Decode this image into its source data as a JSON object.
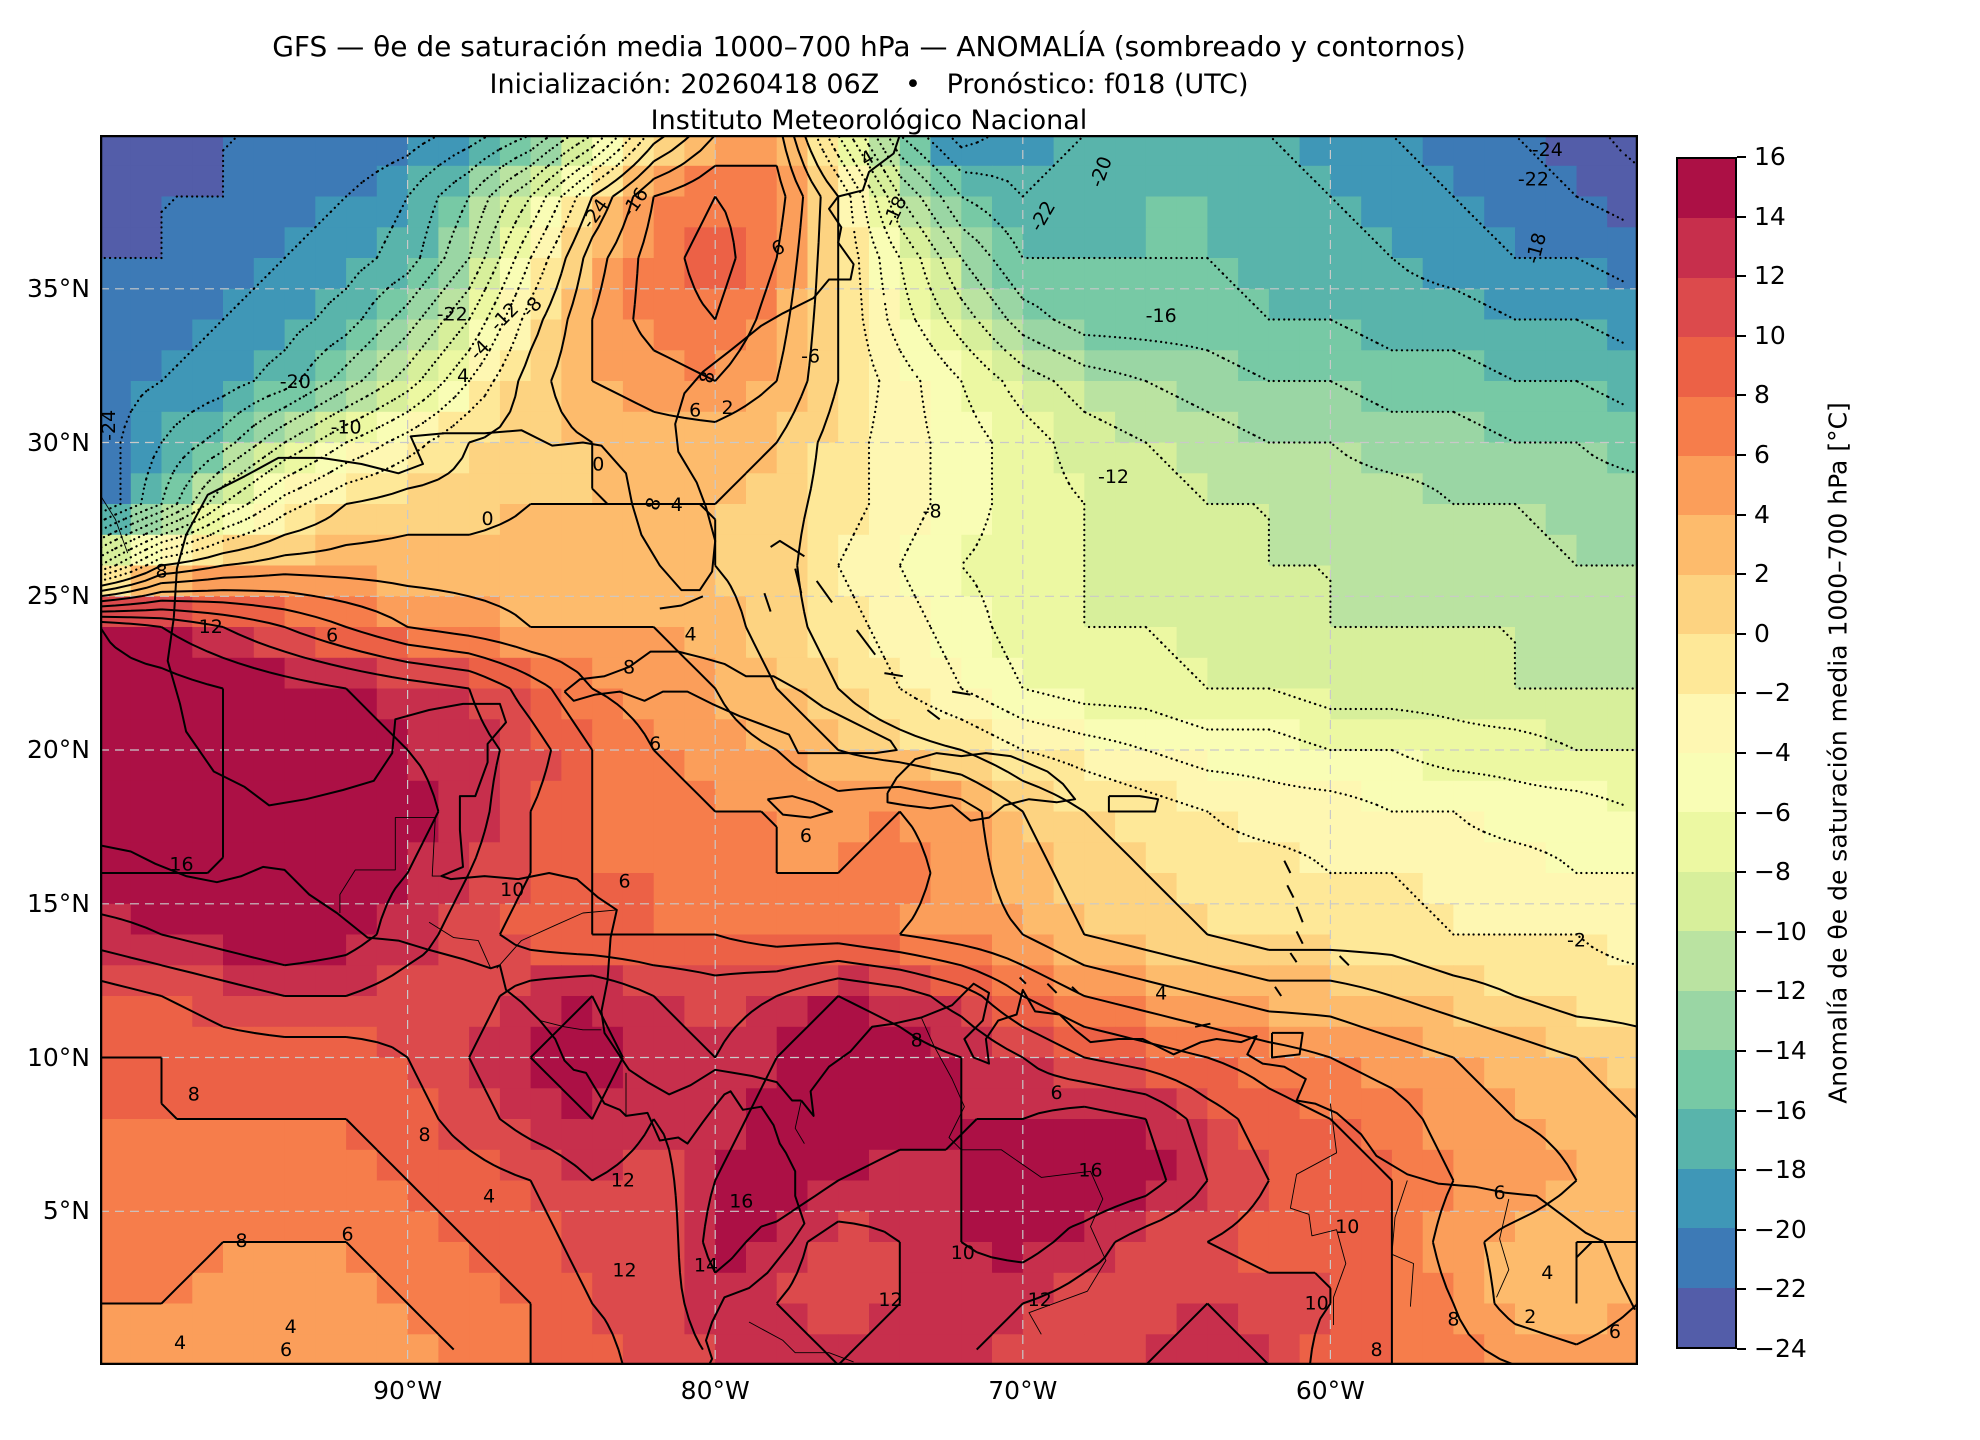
{
  "header": {
    "title": "GFS — θe de saturación media 1000–700 hPa — ANOMALÍA (sombreado y contornos)",
    "subtitle": "Inicialización: 20260418 06Z   •   Pronóstico: f018 (UTC)",
    "institution": "Instituto Meteorológico Nacional"
  },
  "chart_data": {
    "type": "heatmap",
    "subtype": "filled-contour-map-with-contour-lines",
    "model": "GFS",
    "field": "θe de saturación media 1000–700 hPa — anomalía",
    "init": "20260418 06Z",
    "forecast": "f018 (UTC)",
    "lon_range": [
      -100,
      -50
    ],
    "lat_range": [
      0,
      40
    ],
    "grid_step_deg": 2,
    "lons": [
      -100,
      -98,
      -96,
      -94,
      -92,
      -90,
      -88,
      -86,
      -84,
      -82,
      -80,
      -78,
      -76,
      -74,
      -72,
      -70,
      -68,
      -66,
      -64,
      -62,
      -60,
      -58,
      -56,
      -54,
      -52,
      -50
    ],
    "lats": [
      40,
      38,
      36,
      34,
      32,
      30,
      28,
      26,
      24,
      22,
      20,
      18,
      16,
      14,
      12,
      10,
      8,
      6,
      4,
      2,
      0
    ],
    "values": [
      [
        -23,
        -23,
        -22,
        -22,
        -22,
        -21,
        -19,
        -16,
        -10,
        -1,
        4,
        5,
        -6,
        -16,
        -21,
        -19,
        -18,
        -17,
        -17,
        -18,
        -19,
        -20,
        -21,
        -22,
        -23,
        -25
      ],
      [
        -23,
        -22,
        -22,
        -21,
        -20,
        -18,
        -14,
        -8,
        0,
        6,
        8,
        7,
        0,
        -10,
        -16,
        -18,
        -17,
        -16,
        -16,
        -17,
        -18,
        -19,
        -20,
        -21,
        -22,
        -23
      ],
      [
        -22,
        -22,
        -21,
        -20,
        -19,
        -17,
        -12,
        -4,
        3,
        7,
        9,
        6,
        0,
        -6,
        -12,
        -16,
        -16,
        -16,
        -16,
        -17,
        -17,
        -18,
        -19,
        -20,
        -20,
        -21
      ],
      [
        -21,
        -21,
        -20,
        -19,
        -17,
        -13,
        -8,
        -1,
        4,
        7,
        8,
        5,
        0,
        -5,
        -9,
        -13,
        -15,
        -15,
        -15,
        -16,
        -16,
        -17,
        -17,
        -18,
        -18,
        -19
      ],
      [
        -21,
        -20,
        -19,
        -17,
        -13,
        -9,
        -4,
        1,
        4,
        5,
        6,
        4,
        0,
        -3,
        -6,
        -9,
        -11,
        -12,
        -13,
        -14,
        -14,
        -15,
        -15,
        -16,
        -16,
        -17
      ],
      [
        -21,
        -18,
        -15,
        -10,
        -6,
        -3,
        0,
        1,
        2,
        3,
        3,
        2,
        -1,
        -3,
        -5,
        -7,
        -9,
        -10,
        -11,
        -12,
        -12,
        -13,
        -13,
        -14,
        -14,
        -15
      ],
      [
        -22,
        -16,
        -8,
        -3,
        0,
        1,
        1,
        2,
        2,
        2,
        2,
        1,
        -1,
        -3,
        -5,
        -7,
        -8,
        -9,
        -10,
        -10,
        -11,
        -11,
        -12,
        -12,
        -13,
        -13
      ],
      [
        -8,
        0,
        2,
        3,
        3,
        3,
        3,
        3,
        3,
        3,
        2,
        1,
        -2,
        -4,
        -6,
        -7,
        -8,
        -9,
        -9,
        -10,
        -10,
        -11,
        -11,
        -11,
        -12,
        -12
      ],
      [
        16,
        14,
        12,
        10,
        8,
        6,
        5,
        4,
        4,
        4,
        3,
        1,
        -1,
        -3,
        -5,
        -7,
        -8,
        -8,
        -9,
        -9,
        -10,
        -10,
        -10,
        -10,
        -11,
        -11
      ],
      [
        17,
        17,
        16,
        15,
        14,
        13,
        12,
        9,
        6,
        5,
        4,
        2,
        0,
        -2,
        -4,
        -6,
        -7,
        -7,
        -8,
        -8,
        -9,
        -9,
        -9,
        -10,
        -10,
        -10
      ],
      [
        17,
        17,
        16,
        16,
        15,
        14,
        13,
        11,
        8,
        6,
        5,
        4,
        2,
        1,
        0,
        -2,
        -3,
        -4,
        -5,
        -5,
        -6,
        -6,
        -7,
        -7,
        -8,
        -8
      ],
      [
        17,
        17,
        16,
        16,
        15,
        15,
        13,
        10,
        8,
        7,
        6,
        6,
        5,
        6,
        5,
        2,
        0,
        -1,
        -2,
        -3,
        -3,
        -4,
        -4,
        -5,
        -5,
        -6
      ],
      [
        16,
        16,
        16,
        16,
        15,
        14,
        12,
        10,
        8,
        8,
        7,
        6,
        6,
        7,
        5,
        3,
        1,
        0,
        -1,
        -1,
        -2,
        -2,
        -3,
        -3,
        -4,
        -4
      ],
      [
        13,
        14,
        15,
        16,
        15,
        13,
        11,
        9,
        8,
        8,
        8,
        7,
        7,
        6,
        5,
        4,
        2,
        1,
        0,
        -1,
        -1,
        -1,
        -2,
        -2,
        -2,
        -3
      ],
      [
        9,
        10,
        11,
        12,
        12,
        11,
        11,
        13,
        14,
        12,
        11,
        12,
        14,
        13,
        11,
        8,
        6,
        5,
        4,
        3,
        3,
        2,
        1,
        0,
        -1,
        -1
      ],
      [
        8,
        8,
        9,
        9,
        9,
        10,
        12,
        14,
        15,
        13,
        12,
        14,
        16,
        15,
        14,
        12,
        10,
        9,
        8,
        7,
        6,
        5,
        4,
        3,
        2,
        1
      ],
      [
        8,
        8,
        8,
        8,
        8,
        9,
        11,
        13,
        14,
        12,
        13,
        15,
        16,
        15,
        14,
        14,
        15,
        14,
        11,
        9,
        8,
        7,
        5,
        4,
        3,
        2
      ],
      [
        7,
        7,
        7,
        7,
        7,
        8,
        9,
        10,
        12,
        11,
        14,
        16,
        14,
        13,
        14,
        15,
        16,
        15,
        12,
        10,
        9,
        8,
        6,
        6,
        4,
        3
      ],
      [
        7,
        7,
        6,
        6,
        6,
        7,
        8,
        9,
        11,
        10,
        15,
        13,
        11,
        12,
        14,
        15,
        13,
        11,
        10,
        9,
        10,
        8,
        5,
        3,
        2,
        2
      ],
      [
        6,
        6,
        5,
        5,
        5,
        6,
        7,
        8,
        10,
        11,
        13,
        12,
        11,
        12,
        13,
        12,
        11,
        11,
        12,
        11,
        10,
        8,
        6,
        3,
        2,
        4
      ],
      [
        6,
        5,
        5,
        4,
        4,
        5,
        6,
        8,
        9,
        11,
        12,
        13,
        12,
        13,
        12,
        11,
        10,
        12,
        13,
        12,
        9,
        8,
        7,
        6,
        5,
        6
      ]
    ],
    "fill_levels": {
      "min": -24,
      "max": 16,
      "step": 2
    },
    "contour_level_step": 2,
    "contour_style": {
      "positive": "solid",
      "negative": "dotted",
      "color": "#000000"
    },
    "colors": [
      "#535da9",
      "#3d7ab6",
      "#3f97b7",
      "#59b4ab",
      "#77c9a5",
      "#9ad6a4",
      "#bae3a1",
      "#d7ef9b",
      "#ecf8a2",
      "#f9fdb5",
      "#fef7b2",
      "#fee898",
      "#fdd381",
      "#fdbb6c",
      "#fb9e5a",
      "#f67d4b",
      "#ec6146",
      "#dc4a4c",
      "#c72f4c",
      "#ac1045"
    ],
    "grid_on": true,
    "xticks": [
      {
        "lon": -90,
        "label": "90°W"
      },
      {
        "lon": -80,
        "label": "80°W"
      },
      {
        "lon": -70,
        "label": "70°W"
      },
      {
        "lon": -60,
        "label": "60°W"
      }
    ],
    "yticks": [
      {
        "lat": 35,
        "label": "35°N"
      },
      {
        "lat": 30,
        "label": "30°N"
      },
      {
        "lat": 25,
        "label": "25°N"
      },
      {
        "lat": 20,
        "label": "20°N"
      },
      {
        "lat": 15,
        "label": "15°N"
      },
      {
        "lat": 10,
        "label": "10°N"
      },
      {
        "lat": 5,
        "label": "5°N"
      }
    ],
    "colorbar": {
      "ticks": [
        "16",
        "14",
        "12",
        "10",
        "8",
        "6",
        "4",
        "2",
        "0",
        "−2",
        "−4",
        "−6",
        "−8",
        "−10",
        "−12",
        "−14",
        "−16",
        "−18",
        "−20",
        "−22",
        "−24"
      ],
      "label": "Anomalía de θe de saturación media 1000–700 hPa [°C]"
    },
    "contour_labels": [
      {
        "t": "-22",
        "x": 0.229,
        "y": 0.146
      },
      {
        "t": "-20",
        "x": 0.127,
        "y": 0.201
      },
      {
        "t": "-10",
        "x": 0.16,
        "y": 0.238
      },
      {
        "t": "-24",
        "x": 0.322,
        "y": 0.064,
        "r": -55
      },
      {
        "t": "-16",
        "x": 0.348,
        "y": 0.055,
        "r": -55
      },
      {
        "t": "-12",
        "x": 0.263,
        "y": 0.148,
        "r": -45
      },
      {
        "t": "-8",
        "x": 0.281,
        "y": 0.14,
        "r": -45
      },
      {
        "t": "-4",
        "x": 0.247,
        "y": 0.175,
        "r": -45
      },
      {
        "t": "4",
        "x": 0.236,
        "y": 0.196
      },
      {
        "t": "4",
        "x": 0.499,
        "y": 0.019,
        "r": -30
      },
      {
        "t": "6",
        "x": 0.441,
        "y": 0.092,
        "r": -25
      },
      {
        "t": "2",
        "x": 0.408,
        "y": 0.222
      },
      {
        "t": "6",
        "x": 0.387,
        "y": 0.224
      },
      {
        "t": "8",
        "x": 0.395,
        "y": 0.197,
        "r": -80
      },
      {
        "t": "8",
        "x": 0.36,
        "y": 0.3,
        "r": -70
      },
      {
        "t": "-18",
        "x": 0.517,
        "y": 0.062,
        "r": -65
      },
      {
        "t": "-22",
        "x": 0.613,
        "y": 0.066,
        "r": -60
      },
      {
        "t": "-20",
        "x": 0.651,
        "y": 0.03,
        "r": -70
      },
      {
        "t": "-24",
        "x": 0.941,
        "y": 0.012
      },
      {
        "t": "-22",
        "x": 0.932,
        "y": 0.036
      },
      {
        "t": "-18",
        "x": 0.934,
        "y": 0.092,
        "r": -75
      },
      {
        "t": "-16",
        "x": 0.69,
        "y": 0.147
      },
      {
        "t": "-12",
        "x": 0.659,
        "y": 0.278
      },
      {
        "t": "-8",
        "x": 0.541,
        "y": 0.306
      },
      {
        "t": "-6",
        "x": 0.462,
        "y": 0.18
      },
      {
        "t": "-2",
        "x": 0.96,
        "y": 0.655
      },
      {
        "t": "-24",
        "x": 0.006,
        "y": 0.236,
        "r": -90
      },
      {
        "t": "0",
        "x": 0.324,
        "y": 0.268
      },
      {
        "t": "0",
        "x": 0.252,
        "y": 0.312
      },
      {
        "t": "4",
        "x": 0.375,
        "y": 0.301
      },
      {
        "t": "4",
        "x": 0.384,
        "y": 0.406
      },
      {
        "t": "8",
        "x": 0.344,
        "y": 0.433
      },
      {
        "t": "8",
        "x": 0.04,
        "y": 0.355
      },
      {
        "t": "12",
        "x": 0.072,
        "y": 0.4
      },
      {
        "t": "6",
        "x": 0.151,
        "y": 0.407
      },
      {
        "t": "16",
        "x": 0.053,
        "y": 0.593
      },
      {
        "t": "6",
        "x": 0.361,
        "y": 0.495
      },
      {
        "t": "6",
        "x": 0.459,
        "y": 0.57
      },
      {
        "t": "10",
        "x": 0.268,
        "y": 0.614
      },
      {
        "t": "6",
        "x": 0.341,
        "y": 0.607
      },
      {
        "t": "8",
        "x": 0.061,
        "y": 0.78
      },
      {
        "t": "8",
        "x": 0.211,
        "y": 0.813
      },
      {
        "t": "12",
        "x": 0.34,
        "y": 0.85
      },
      {
        "t": "4",
        "x": 0.253,
        "y": 0.863
      },
      {
        "t": "6",
        "x": 0.161,
        "y": 0.894
      },
      {
        "t": "8",
        "x": 0.092,
        "y": 0.899
      },
      {
        "t": "4",
        "x": 0.124,
        "y": 0.969
      },
      {
        "t": "4",
        "x": 0.052,
        "y": 0.982
      },
      {
        "t": "6",
        "x": 0.121,
        "y": 0.988
      },
      {
        "t": "4",
        "x": 0.69,
        "y": 0.698
      },
      {
        "t": "8",
        "x": 0.531,
        "y": 0.736
      },
      {
        "t": "6",
        "x": 0.622,
        "y": 0.779
      },
      {
        "t": "16",
        "x": 0.644,
        "y": 0.842
      },
      {
        "t": "16",
        "x": 0.417,
        "y": 0.867
      },
      {
        "t": "14",
        "x": 0.394,
        "y": 0.919
      },
      {
        "t": "12",
        "x": 0.341,
        "y": 0.923
      },
      {
        "t": "10",
        "x": 0.561,
        "y": 0.909
      },
      {
        "t": "12",
        "x": 0.514,
        "y": 0.947
      },
      {
        "t": "12",
        "x": 0.611,
        "y": 0.947
      },
      {
        "t": "10",
        "x": 0.811,
        "y": 0.888
      },
      {
        "t": "10",
        "x": 0.791,
        "y": 0.95
      },
      {
        "t": "8",
        "x": 0.88,
        "y": 0.963
      },
      {
        "t": "2",
        "x": 0.93,
        "y": 0.961
      },
      {
        "t": "4",
        "x": 0.941,
        "y": 0.925
      },
      {
        "t": "6",
        "x": 0.91,
        "y": 0.86
      },
      {
        "t": "6",
        "x": 0.985,
        "y": 0.973
      },
      {
        "t": "8",
        "x": 0.83,
        "y": 0.988
      }
    ]
  }
}
